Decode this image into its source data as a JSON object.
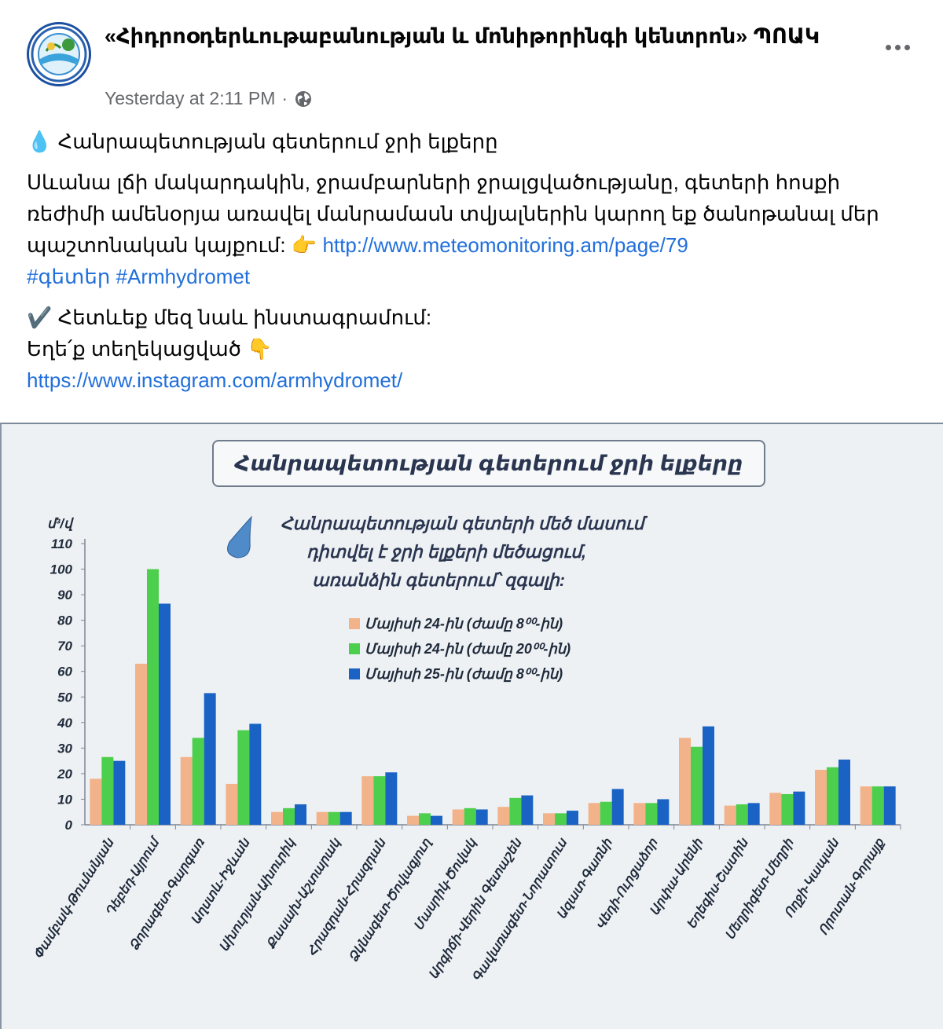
{
  "post": {
    "page_name": "«Հիդրոօդերևութաբանության և մոնիթորինգի կենտրոն» ՊՈԱԿ",
    "timestamp": "Yesterday at 2:11 PM",
    "separator": "·",
    "privacy_icon": "globe-icon",
    "more_icon": "more-dots-icon",
    "headline_emoji": "💧",
    "headline": "Հանրապետության գետերում ջրի ելքերը",
    "body_line1": "Սևանա լճի մակարդակին, ջրամբարների ջրալցվածությանը, գետերի հոսքի",
    "body_line2": "ռեժիմի ամենօրյա առավել մանրամասն տվյալներին կարող եք ծանոթանալ մեր",
    "body_line3": "պաշտոնական կայքում:",
    "pointing_emoji": "👉",
    "site_link": "http://www.meteomonitoring.am/page/79",
    "hashtag1": "#գետեր",
    "hashtag2": "#Armhydromet",
    "check_emoji": "✔️",
    "follow_text": "Հետևեք մեզ նաև ինստագրամում:",
    "stay_text": "Եղե՛ք տեղեկացված",
    "down_emoji": "👇",
    "instagram_link": "https://www.instagram.com/armhydromet/"
  },
  "chart_data": {
    "type": "bar",
    "title": "Հանրապետության գետերում ջրի ելքերը",
    "ylabel": "մ³/վ",
    "ylim": [
      0,
      110
    ],
    "yticks": [
      0,
      10,
      20,
      30,
      40,
      50,
      60,
      70,
      80,
      90,
      100,
      110
    ],
    "annotation": [
      "Հանրապետության գետերի մեծ մասում",
      "դիտվել է ջրի ելքերի մեծացում,",
      "առանձին գետերում՝ զգալի:"
    ],
    "annotation_icon": "water-drop-icon",
    "categories": [
      "Փամբակ-Թումանյան",
      "Դեբեդ-Այրում",
      "Ձորագետ-Գարգառ",
      "Աղստև-Իջևան",
      "Ախուրյան-Ախուրիկ",
      "Քասախ-Աշտարակ",
      "Հրազդան-Հրազդան",
      "Ձկնագետ-Ծովագյուղ",
      "Մասրիկ-Ծովակ",
      "Արգիճի-Վերին Գետաշեն",
      "Գավառագետ-Նորատուս",
      "Ազատ-Գառնի",
      "Վեդի-Ուրցաձոր",
      "Արփա-Արենի",
      "Եղեգիս-Շատին",
      "Մեղրիգետ-Մեղրի",
      "Ողջի-Կապան",
      "Որոտան-Գորայք"
    ],
    "series": [
      {
        "name": "Մայիսի 24-ին (ժամը 8⁰⁰-ին)",
        "color": "#f2b38a",
        "values": [
          18,
          63,
          26.5,
          16,
          5,
          5,
          19,
          3.5,
          6,
          7,
          4.5,
          8.5,
          8.5,
          34,
          7.5,
          12.5,
          21.5,
          15
        ]
      },
      {
        "name": "Մայիսի 24-ին (ժամը 20⁰⁰-ին)",
        "color": "#4ccf4c",
        "values": [
          26.5,
          100,
          34,
          37,
          6.5,
          5,
          19,
          4.5,
          6.5,
          10.5,
          4.5,
          9,
          8.5,
          30.5,
          8,
          12,
          22.5,
          15
        ]
      },
      {
        "name": "Մայիսի 25-ին (ժամը 8⁰⁰-ին)",
        "color": "#1a63c4",
        "values": [
          25,
          86.5,
          51.5,
          39.5,
          8,
          5,
          20.5,
          3.5,
          6,
          11.5,
          5.5,
          14,
          10,
          38.5,
          8.5,
          13,
          25.5,
          15
        ]
      }
    ]
  }
}
